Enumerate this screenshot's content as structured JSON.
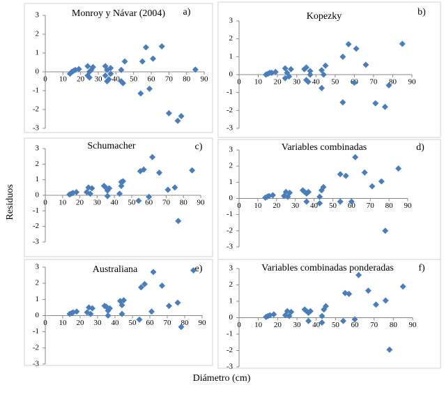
{
  "axis_labels": {
    "y": "Residuos",
    "x": "Diámetro (cm)"
  },
  "chart_data": [
    {
      "type": "scatter",
      "title": "Monroy y Návar (2004)",
      "label": "a)",
      "color": "#4a7ebb",
      "x": [
        14,
        15,
        16,
        17,
        19,
        24,
        24,
        25,
        25,
        26,
        27,
        34,
        34,
        35,
        35,
        36,
        37,
        37,
        43,
        43,
        44,
        45,
        54,
        55,
        57,
        59,
        61,
        66,
        70,
        75,
        77,
        85
      ],
      "values": [
        -0.1,
        0,
        0.05,
        0.1,
        0.15,
        0.3,
        -0.2,
        0,
        -0.3,
        0.1,
        0.25,
        0.3,
        -0.2,
        0.1,
        -0.5,
        -0.4,
        0.2,
        -0.1,
        0.1,
        -0.5,
        -0.6,
        0.55,
        -1.15,
        0.55,
        1.3,
        -0.9,
        0.7,
        1.35,
        -2.2,
        -2.6,
        -2.35,
        0.12
      ],
      "xlim": [
        0,
        90
      ],
      "ylim": [
        -3,
        3
      ],
      "xticks": [
        0,
        10,
        20,
        30,
        40,
        50,
        60,
        70,
        80,
        90
      ],
      "yticks": [
        -3,
        -2,
        -1,
        0,
        1,
        2,
        3
      ]
    },
    {
      "type": "scatter",
      "title": "Kopezky",
      "label": "b)",
      "color": "#4a7ebb",
      "x": [
        14,
        15,
        16,
        17,
        19,
        24,
        24,
        25,
        26,
        27,
        34,
        35,
        35,
        36,
        37,
        37,
        43,
        43,
        44,
        45,
        54,
        54,
        57,
        60,
        61,
        66,
        71,
        76,
        78,
        85
      ],
      "values": [
        0,
        0.05,
        0.1,
        0.1,
        0.15,
        0.35,
        -0.2,
        0.1,
        -0.1,
        0.3,
        0.3,
        0.4,
        -0.3,
        -0.4,
        0.2,
        0,
        0.25,
        -0.75,
        0,
        0.5,
        1.0,
        -1.55,
        1.7,
        -0.45,
        1.45,
        0.55,
        -1.6,
        -1.8,
        -0.6,
        1.72
      ],
      "xlim": [
        0,
        90
      ],
      "ylim": [
        -3,
        3
      ],
      "xticks": [
        0,
        10,
        20,
        30,
        40,
        50,
        60,
        70,
        80,
        90
      ],
      "yticks": [
        -3,
        -2,
        -1,
        0,
        1,
        2,
        3
      ]
    },
    {
      "type": "scatter",
      "title": "Schumacher",
      "label": "c)",
      "color": "#4a7ebb",
      "x": [
        14,
        15,
        16,
        18,
        24,
        25,
        26,
        27,
        34,
        35,
        36,
        36,
        37,
        43,
        44,
        44,
        45,
        54,
        55,
        57,
        60,
        62,
        66,
        71,
        75,
        77,
        85
      ],
      "values": [
        0.05,
        0.1,
        0.15,
        0.2,
        0.2,
        0.5,
        0.1,
        0.45,
        0.6,
        0.5,
        0.3,
        -0.05,
        0.45,
        0.1,
        0.85,
        0.6,
        0.9,
        -0.35,
        1.55,
        1.65,
        -0.1,
        2.45,
        1.45,
        0.35,
        0.5,
        -1.65,
        1.6
      ],
      "xlim": [
        0,
        90
      ],
      "ylim": [
        -3,
        3
      ],
      "xticks": [
        0,
        10,
        20,
        30,
        40,
        50,
        60,
        70,
        80,
        90
      ],
      "yticks": [
        -3,
        -2,
        -1,
        0,
        1,
        2,
        3
      ]
    },
    {
      "type": "scatter",
      "title": "Variables combinadas",
      "label": "d)",
      "color": "#4a7ebb",
      "x": [
        14,
        15,
        16,
        18,
        24,
        25,
        26,
        27,
        34,
        35,
        36,
        36,
        37,
        43,
        43,
        44,
        45,
        54,
        54,
        57,
        60,
        62,
        67,
        71,
        76,
        78,
        85
      ],
      "values": [
        0.05,
        0.1,
        0.15,
        0.2,
        0.15,
        0.4,
        0.1,
        0.35,
        0.5,
        0.4,
        0.3,
        -0.2,
        0.4,
        0.1,
        -0.3,
        0.5,
        0.7,
        -0.2,
        1.5,
        1.4,
        -0.2,
        2.55,
        1.6,
        0.75,
        1.05,
        -2.0,
        1.85
      ],
      "xlim": [
        0,
        90
      ],
      "ylim": [
        -3,
        3
      ],
      "xticks": [
        0,
        10,
        20,
        30,
        40,
        50,
        60,
        70,
        80,
        90
      ],
      "yticks": [
        -3,
        -2,
        -1,
        0,
        1,
        2,
        3
      ]
    },
    {
      "type": "scatter",
      "title": "Australiana",
      "label": "e)",
      "color": "#4a7ebb",
      "x": [
        14,
        15,
        16,
        18,
        24,
        25,
        26,
        27,
        34,
        35,
        36,
        36,
        37,
        43,
        44,
        44,
        45,
        54,
        55,
        57,
        61,
        62,
        67,
        71,
        76,
        78,
        85
      ],
      "values": [
        0.1,
        0.15,
        0.2,
        0.25,
        0.2,
        0.5,
        0.1,
        0.45,
        0.6,
        0.55,
        0.3,
        0,
        0.45,
        0.9,
        0.65,
        0.1,
        0.95,
        -0.25,
        1.75,
        1.95,
        0.25,
        2.7,
        1.85,
        0.6,
        0.8,
        -0.7,
        2.8
      ],
      "xlim": [
        0,
        90
      ],
      "ylim": [
        -3,
        3
      ],
      "xticks": [
        0,
        10,
        20,
        30,
        40,
        50,
        60,
        70,
        80,
        90
      ],
      "yticks": [
        -3,
        -2,
        -1,
        0,
        1,
        2,
        3
      ]
    },
    {
      "type": "scatter",
      "title": "Variables combinadas ponderadas",
      "label": "f)",
      "color": "#4a7ebb",
      "x": [
        14,
        15,
        16,
        18,
        24,
        25,
        26,
        27,
        34,
        35,
        36,
        36,
        37,
        43,
        43,
        44,
        45,
        54,
        55,
        57,
        60,
        62,
        67,
        71,
        76,
        78,
        85
      ],
      "values": [
        0.05,
        0.1,
        0.15,
        0.2,
        0.15,
        0.4,
        0.1,
        0.35,
        0.5,
        0.4,
        0.3,
        -0.2,
        0.4,
        0.1,
        -0.3,
        0.5,
        0.7,
        -0.2,
        1.5,
        1.45,
        -0.1,
        2.6,
        1.65,
        0.8,
        1.05,
        -1.95,
        1.9
      ],
      "xlim": [
        0,
        90
      ],
      "ylim": [
        -3,
        3
      ],
      "xticks": [
        0,
        10,
        20,
        30,
        40,
        50,
        60,
        70,
        80,
        90
      ],
      "yticks": [
        -3,
        -2,
        -1,
        0,
        1,
        2,
        3
      ]
    }
  ]
}
